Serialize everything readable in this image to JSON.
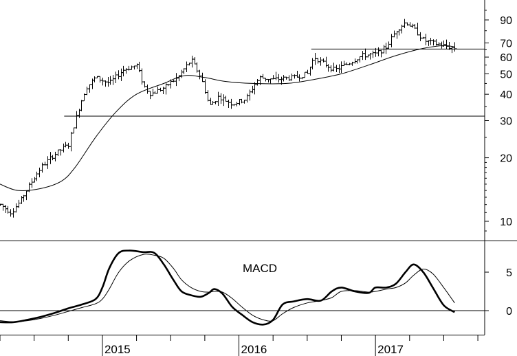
{
  "chart_data": [
    {
      "type": "ohlc",
      "scale": "log",
      "ylim": [
        8.5,
        110
      ],
      "y_ticks": [
        10,
        20,
        30,
        40,
        50,
        60,
        70,
        90
      ],
      "x_labels": [
        "2015",
        "2016",
        "2017"
      ],
      "x_range": [
        2014.25,
        2017.8
      ],
      "grid": false,
      "horizontal_lines": [
        {
          "value": 31.5,
          "x_start": 2014.72
        },
        {
          "value": 65.5,
          "x_start": 2016.53
        }
      ],
      "price_path": [
        [
          2014.25,
          12
        ],
        [
          2014.33,
          11
        ],
        [
          2014.4,
          12.5
        ],
        [
          2014.47,
          15
        ],
        [
          2014.55,
          18
        ],
        [
          2014.62,
          20
        ],
        [
          2014.7,
          22
        ],
        [
          2014.75,
          23
        ],
        [
          2014.8,
          30
        ],
        [
          2014.88,
          43
        ],
        [
          2014.95,
          48
        ],
        [
          2015.05,
          45
        ],
        [
          2015.15,
          52
        ],
        [
          2015.25,
          55
        ],
        [
          2015.3,
          44
        ],
        [
          2015.35,
          40
        ],
        [
          2015.45,
          43
        ],
        [
          2015.55,
          48
        ],
        [
          2015.65,
          58
        ],
        [
          2015.72,
          48
        ],
        [
          2015.78,
          35
        ],
        [
          2015.85,
          39
        ],
        [
          2015.95,
          36
        ],
        [
          2016.05,
          38
        ],
        [
          2016.15,
          48
        ],
        [
          2016.25,
          47
        ],
        [
          2016.4,
          48
        ],
        [
          2016.5,
          50
        ],
        [
          2016.55,
          60
        ],
        [
          2016.62,
          56
        ],
        [
          2016.7,
          52
        ],
        [
          2016.8,
          56
        ],
        [
          2016.9,
          61
        ],
        [
          2017.0,
          62
        ],
        [
          2017.08,
          67
        ],
        [
          2017.15,
          80
        ],
        [
          2017.22,
          88
        ],
        [
          2017.28,
          82
        ],
        [
          2017.35,
          72
        ],
        [
          2017.42,
          70
        ],
        [
          2017.5,
          68
        ],
        [
          2017.58,
          66
        ]
      ],
      "moving_average": [
        [
          2014.25,
          15
        ],
        [
          2014.38,
          14
        ],
        [
          2014.55,
          14.3
        ],
        [
          2014.7,
          15.5
        ],
        [
          2014.8,
          18
        ],
        [
          2014.95,
          25
        ],
        [
          2015.1,
          33
        ],
        [
          2015.25,
          40
        ],
        [
          2015.45,
          45
        ],
        [
          2015.6,
          49
        ],
        [
          2015.75,
          48
        ],
        [
          2015.9,
          46
        ],
        [
          2016.1,
          45
        ],
        [
          2016.35,
          45
        ],
        [
          2016.55,
          47
        ],
        [
          2016.75,
          50
        ],
        [
          2016.95,
          55
        ],
        [
          2017.15,
          61
        ],
        [
          2017.35,
          66
        ],
        [
          2017.5,
          68
        ],
        [
          2017.58,
          67
        ]
      ]
    },
    {
      "type": "line",
      "title": "MACD",
      "y_ticks": [
        0,
        5
      ],
      "ylim": [
        -3,
        8.5
      ],
      "zero_line": true,
      "series": [
        {
          "style": "thick",
          "points": [
            [
              2014.25,
              -1.5
            ],
            [
              2014.35,
              -1.5
            ],
            [
              2014.45,
              -1.2
            ],
            [
              2014.55,
              -0.8
            ],
            [
              2014.65,
              -0.3
            ],
            [
              2014.75,
              0.3
            ],
            [
              2014.85,
              0.8
            ],
            [
              2014.95,
              1.5
            ],
            [
              2015.0,
              3.0
            ],
            [
              2015.05,
              5.5
            ],
            [
              2015.12,
              7.5
            ],
            [
              2015.2,
              7.8
            ],
            [
              2015.3,
              7.6
            ],
            [
              2015.38,
              7.5
            ],
            [
              2015.45,
              6.0
            ],
            [
              2015.52,
              4.0
            ],
            [
              2015.58,
              2.5
            ],
            [
              2015.65,
              2.0
            ],
            [
              2015.72,
              1.8
            ],
            [
              2015.78,
              2.3
            ],
            [
              2015.82,
              2.8
            ],
            [
              2015.88,
              2.2
            ],
            [
              2015.95,
              0.5
            ],
            [
              2016.02,
              -0.5
            ],
            [
              2016.1,
              -1.5
            ],
            [
              2016.18,
              -1.8
            ],
            [
              2016.25,
              -1.2
            ],
            [
              2016.32,
              0.8
            ],
            [
              2016.4,
              1.2
            ],
            [
              2016.5,
              1.5
            ],
            [
              2016.6,
              1.3
            ],
            [
              2016.68,
              2.5
            ],
            [
              2016.75,
              3.0
            ],
            [
              2016.85,
              2.5
            ],
            [
              2016.95,
              2.3
            ],
            [
              2017.0,
              3.0
            ],
            [
              2017.08,
              3.0
            ],
            [
              2017.15,
              3.5
            ],
            [
              2017.22,
              5.0
            ],
            [
              2017.28,
              6.0
            ],
            [
              2017.35,
              5.0
            ],
            [
              2017.42,
              3.0
            ],
            [
              2017.5,
              0.7
            ],
            [
              2017.58,
              -0.2
            ]
          ]
        },
        {
          "style": "thin",
          "points": [
            [
              2014.25,
              -1.3
            ],
            [
              2014.35,
              -1.45
            ],
            [
              2014.45,
              -1.3
            ],
            [
              2014.55,
              -1.0
            ],
            [
              2014.65,
              -0.6
            ],
            [
              2014.75,
              -0.1
            ],
            [
              2014.85,
              0.4
            ],
            [
              2014.95,
              0.9
            ],
            [
              2015.0,
              1.5
            ],
            [
              2015.05,
              2.8
            ],
            [
              2015.12,
              5.0
            ],
            [
              2015.2,
              6.5
            ],
            [
              2015.3,
              7.3
            ],
            [
              2015.38,
              7.2
            ],
            [
              2015.45,
              6.8
            ],
            [
              2015.52,
              5.5
            ],
            [
              2015.58,
              4.0
            ],
            [
              2015.65,
              3.0
            ],
            [
              2015.72,
              2.5
            ],
            [
              2015.78,
              2.4
            ],
            [
              2015.82,
              2.5
            ],
            [
              2015.88,
              2.4
            ],
            [
              2015.95,
              1.6
            ],
            [
              2016.02,
              0.5
            ],
            [
              2016.1,
              -0.6
            ],
            [
              2016.18,
              -1.2
            ],
            [
              2016.25,
              -1.3
            ],
            [
              2016.32,
              -0.4
            ],
            [
              2016.4,
              0.4
            ],
            [
              2016.5,
              1.0
            ],
            [
              2016.6,
              1.3
            ],
            [
              2016.68,
              1.7
            ],
            [
              2016.75,
              2.5
            ],
            [
              2016.85,
              2.6
            ],
            [
              2016.95,
              2.4
            ],
            [
              2017.0,
              2.5
            ],
            [
              2017.08,
              2.8
            ],
            [
              2017.15,
              3.0
            ],
            [
              2017.22,
              3.6
            ],
            [
              2017.28,
              4.6
            ],
            [
              2017.35,
              5.4
            ],
            [
              2017.42,
              4.8
            ],
            [
              2017.5,
              3.0
            ],
            [
              2017.58,
              1.0
            ]
          ]
        }
      ]
    }
  ]
}
